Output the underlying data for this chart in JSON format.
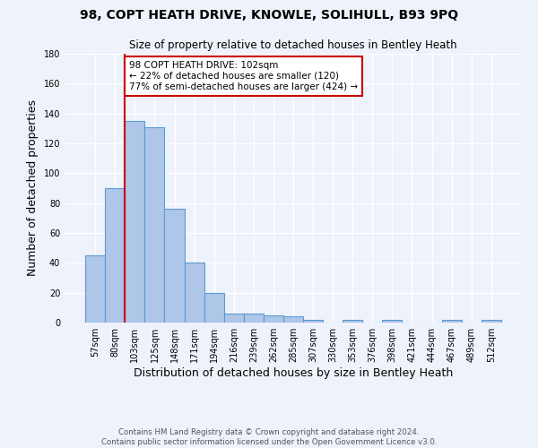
{
  "title1": "98, COPT HEATH DRIVE, KNOWLE, SOLIHULL, B93 9PQ",
  "title2": "Size of property relative to detached houses in Bentley Heath",
  "xlabel": "Distribution of detached houses by size in Bentley Heath",
  "ylabel": "Number of detached properties",
  "footnote1": "Contains HM Land Registry data © Crown copyright and database right 2024.",
  "footnote2": "Contains public sector information licensed under the Open Government Licence v3.0.",
  "bar_labels": [
    "57sqm",
    "80sqm",
    "103sqm",
    "125sqm",
    "148sqm",
    "171sqm",
    "194sqm",
    "216sqm",
    "239sqm",
    "262sqm",
    "285sqm",
    "307sqm",
    "330sqm",
    "353sqm",
    "376sqm",
    "398sqm",
    "421sqm",
    "444sqm",
    "467sqm",
    "489sqm",
    "512sqm"
  ],
  "bar_values": [
    45,
    90,
    135,
    131,
    76,
    40,
    20,
    6,
    6,
    5,
    4,
    2,
    0,
    2,
    0,
    2,
    0,
    0,
    2,
    0,
    2
  ],
  "bar_color": "#aec6e8",
  "bar_edge_color": "#5b9bd5",
  "highlight_bar_index": 2,
  "highlight_color": "#cc0000",
  "ylim": [
    0,
    180
  ],
  "yticks": [
    0,
    20,
    40,
    60,
    80,
    100,
    120,
    140,
    160,
    180
  ],
  "annotation_text": "98 COPT HEATH DRIVE: 102sqm\n← 22% of detached houses are smaller (120)\n77% of semi-detached houses are larger (424) →",
  "annotation_box_color": "#ffffff",
  "annotation_box_edge": "#cc0000",
  "background_color": "#eef2fa",
  "grid_color": "#ffffff"
}
